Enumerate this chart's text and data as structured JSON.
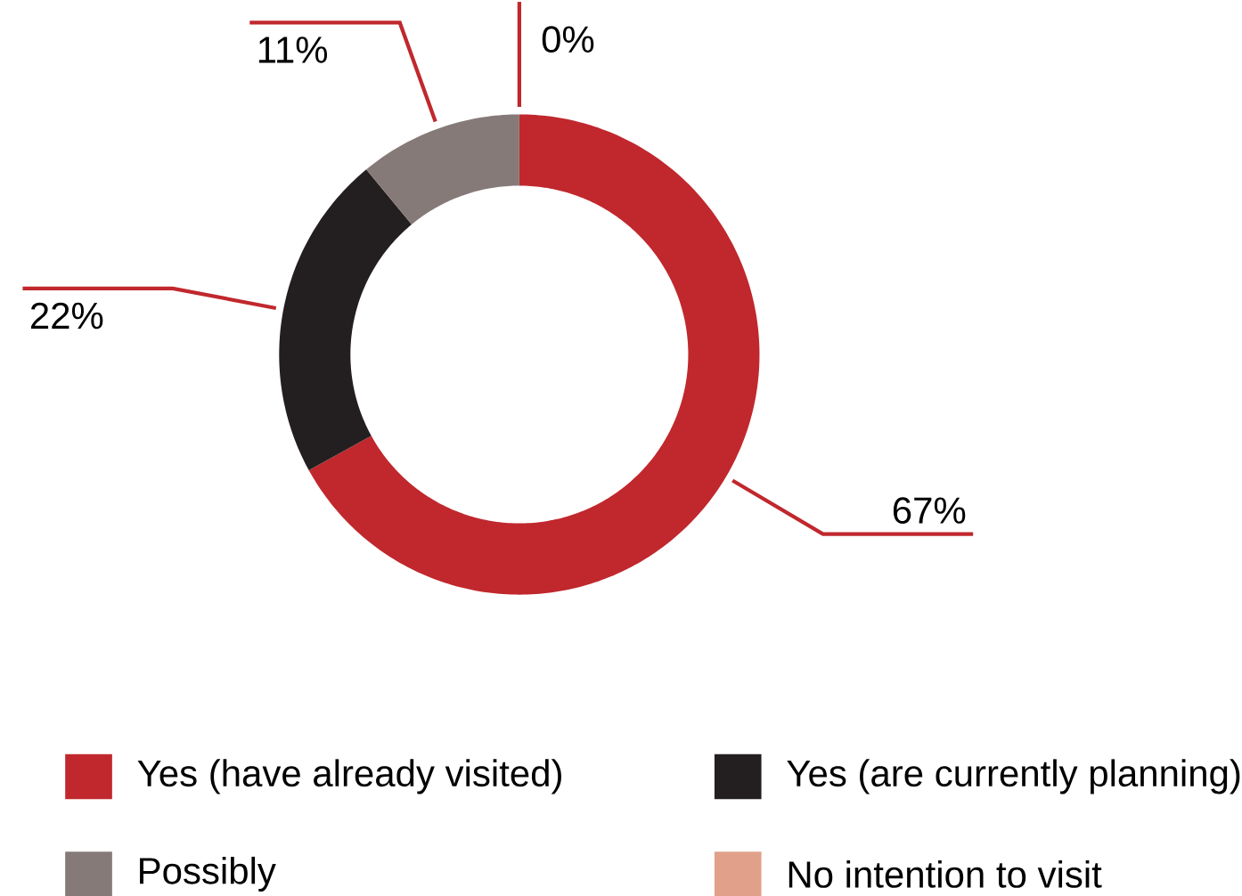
{
  "chart_data": {
    "type": "donut",
    "categories": [
      "Yes (have already visited)",
      "Yes (are currently planning)",
      "Possibly",
      "No intention to visit"
    ],
    "values": [
      67,
      22,
      11,
      0
    ],
    "colors": [
      "#c0282d",
      "#231f20",
      "#857a78",
      "#e0a08a"
    ],
    "value_labels": [
      "67%",
      "22%",
      "11%",
      "0%"
    ],
    "legend": "bottom"
  }
}
